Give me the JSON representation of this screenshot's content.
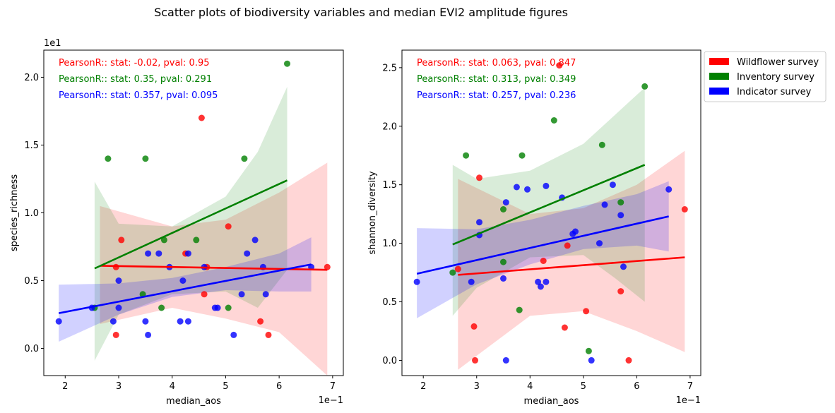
{
  "figure_title": "Scatter plots of biodiversity variables and median EVI2 amplitude figures",
  "legend": {
    "items": [
      {
        "label": "Wildflower survey",
        "color": "#ff0000"
      },
      {
        "label": "Inventory survey",
        "color": "#008000"
      },
      {
        "label": "Indicator survey",
        "color": "#0000ff"
      }
    ]
  },
  "chart_data": [
    {
      "type": "scatter",
      "xlabel": "median_aos",
      "ylabel": "species_richness",
      "x_offset_label": "1e−1",
      "y_offset_label": "1e1",
      "xlim": [
        1.6,
        7.2
      ],
      "ylim": [
        -0.2,
        2.2
      ],
      "xticks": [
        2,
        3,
        4,
        5,
        6,
        7
      ],
      "xtick_labels": [
        "2",
        "3",
        "4",
        "5",
        "6",
        "7"
      ],
      "yticks": [
        0.0,
        0.5,
        1.0,
        1.5,
        2.0
      ],
      "ytick_labels": [
        "0.0",
        "0.5",
        "1.0",
        "1.5",
        "2.0"
      ],
      "annotations": [
        {
          "text": "PearsonR:: stat: -0.02, pval: 0.95",
          "color": "#ff0000"
        },
        {
          "text": "PearsonR:: stat: 0.35, pval: 0.291",
          "color": "#008000"
        },
        {
          "text": "PearsonR:: stat: 0.357, pval: 0.095",
          "color": "#0000ff"
        }
      ],
      "series": [
        {
          "name": "Wildflower survey",
          "color": "#ff0000",
          "points": [
            [
              2.95,
              0.1
            ],
            [
              3.05,
              0.8
            ],
            [
              2.95,
              0.6
            ],
            [
              4.25,
              0.7
            ],
            [
              4.55,
              1.7
            ],
            [
              4.6,
              0.4
            ],
            [
              4.65,
              0.6
            ],
            [
              5.05,
              0.9
            ],
            [
              5.65,
              0.2
            ],
            [
              5.8,
              0.1
            ],
            [
              6.9,
              0.6
            ]
          ],
          "fit": [
            [
              2.65,
              0.61
            ],
            [
              6.9,
              0.58
            ]
          ],
          "ci_upper": [
            [
              2.65,
              1.05
            ],
            [
              4.0,
              0.9
            ],
            [
              5.0,
              0.95
            ],
            [
              6.0,
              1.15
            ],
            [
              6.9,
              1.37
            ]
          ],
          "ci_lower": [
            [
              2.65,
              0.18
            ],
            [
              4.0,
              0.3
            ],
            [
              5.0,
              0.22
            ],
            [
              6.0,
              0.12
            ],
            [
              6.9,
              -0.2
            ]
          ]
        },
        {
          "name": "Inventory survey",
          "color": "#008000",
          "points": [
            [
              2.55,
              0.3
            ],
            [
              2.8,
              1.4
            ],
            [
              3.45,
              0.4
            ],
            [
              3.5,
              1.4
            ],
            [
              3.8,
              0.3
            ],
            [
              3.85,
              0.8
            ],
            [
              4.45,
              0.8
            ],
            [
              5.05,
              0.3
            ],
            [
              5.35,
              1.4
            ],
            [
              6.15,
              2.1
            ]
          ],
          "fit": [
            [
              2.55,
              0.59
            ],
            [
              6.15,
              1.24
            ]
          ],
          "ci_upper": [
            [
              2.55,
              1.23
            ],
            [
              3.0,
              0.92
            ],
            [
              4.0,
              0.9
            ],
            [
              5.0,
              1.12
            ],
            [
              5.6,
              1.45
            ],
            [
              6.15,
              1.93
            ]
          ],
          "ci_lower": [
            [
              2.55,
              -0.09
            ],
            [
              3.0,
              0.25
            ],
            [
              4.0,
              0.4
            ],
            [
              5.0,
              0.42
            ],
            [
              5.6,
              0.3
            ],
            [
              6.15,
              0.58
            ]
          ]
        },
        {
          "name": "Indicator survey",
          "color": "#0000ff",
          "points": [
            [
              1.88,
              0.2
            ],
            [
              2.5,
              0.3
            ],
            [
              2.9,
              0.2
            ],
            [
              3.0,
              0.5
            ],
            [
              3.0,
              0.3
            ],
            [
              3.5,
              0.2
            ],
            [
              3.55,
              0.7
            ],
            [
              3.55,
              0.1
            ],
            [
              3.75,
              0.7
            ],
            [
              3.95,
              0.6
            ],
            [
              4.15,
              0.2
            ],
            [
              4.2,
              0.5
            ],
            [
              4.3,
              0.7
            ],
            [
              4.3,
              0.2
            ],
            [
              4.6,
              0.6
            ],
            [
              4.8,
              0.3
            ],
            [
              4.85,
              0.3
            ],
            [
              5.15,
              0.1
            ],
            [
              5.3,
              0.4
            ],
            [
              5.4,
              0.7
            ],
            [
              5.55,
              0.8
            ],
            [
              5.7,
              0.6
            ],
            [
              5.75,
              0.4
            ],
            [
              6.6,
              0.6
            ]
          ],
          "fit": [
            [
              1.88,
              0.26
            ],
            [
              6.6,
              0.62
            ]
          ],
          "ci_upper": [
            [
              1.88,
              0.47
            ],
            [
              3.0,
              0.48
            ],
            [
              4.0,
              0.52
            ],
            [
              5.0,
              0.6
            ],
            [
              6.0,
              0.7
            ],
            [
              6.6,
              0.82
            ]
          ],
          "ci_lower": [
            [
              1.88,
              0.05
            ],
            [
              3.0,
              0.25
            ],
            [
              4.0,
              0.38
            ],
            [
              5.0,
              0.43
            ],
            [
              6.0,
              0.42
            ],
            [
              6.6,
              0.42
            ]
          ]
        }
      ]
    },
    {
      "type": "scatter",
      "xlabel": "median_aos",
      "ylabel": "shannon_diversity",
      "x_offset_label": "1e−1",
      "y_offset_label": "",
      "xlim": [
        1.6,
        7.2
      ],
      "ylim": [
        -0.13,
        2.65
      ],
      "xticks": [
        2,
        3,
        4,
        5,
        6,
        7
      ],
      "xtick_labels": [
        "2",
        "3",
        "4",
        "5",
        "6",
        "7"
      ],
      "yticks": [
        0.0,
        0.5,
        1.0,
        1.5,
        2.0,
        2.5
      ],
      "ytick_labels": [
        "0.0",
        "0.5",
        "1.0",
        "1.5",
        "2.0",
        "2.5"
      ],
      "annotations": [
        {
          "text": "PearsonR:: stat: 0.063, pval: 0.847",
          "color": "#ff0000"
        },
        {
          "text": "PearsonR:: stat: 0.313, pval: 0.349",
          "color": "#008000"
        },
        {
          "text": "PearsonR:: stat: 0.257, pval: 0.236",
          "color": "#0000ff"
        }
      ],
      "series": [
        {
          "name": "Wildflower survey",
          "color": "#ff0000",
          "points": [
            [
              2.65,
              0.78
            ],
            [
              2.95,
              0.29
            ],
            [
              2.97,
              0.0
            ],
            [
              3.05,
              1.56
            ],
            [
              4.25,
              0.85
            ],
            [
              4.55,
              2.52
            ],
            [
              4.65,
              0.28
            ],
            [
              4.7,
              0.98
            ],
            [
              5.05,
              0.42
            ],
            [
              5.7,
              0.59
            ],
            [
              5.85,
              0.0
            ],
            [
              6.9,
              1.29
            ]
          ],
          "fit": [
            [
              2.65,
              0.73
            ],
            [
              6.9,
              0.88
            ]
          ],
          "ci_upper": [
            [
              2.65,
              1.55
            ],
            [
              4.0,
              1.25
            ],
            [
              5.0,
              1.3
            ],
            [
              6.0,
              1.5
            ],
            [
              6.9,
              1.79
            ]
          ],
          "ci_lower": [
            [
              2.65,
              -0.08
            ],
            [
              4.0,
              0.38
            ],
            [
              5.0,
              0.42
            ],
            [
              6.0,
              0.25
            ],
            [
              6.9,
              0.07
            ]
          ]
        },
        {
          "name": "Inventory survey",
          "color": "#008000",
          "points": [
            [
              2.55,
              0.75
            ],
            [
              2.8,
              1.75
            ],
            [
              3.5,
              0.84
            ],
            [
              3.5,
              1.29
            ],
            [
              3.8,
              0.43
            ],
            [
              3.85,
              1.75
            ],
            [
              4.45,
              2.05
            ],
            [
              5.1,
              0.08
            ],
            [
              5.35,
              1.84
            ],
            [
              5.7,
              1.35
            ],
            [
              6.15,
              2.34
            ]
          ],
          "fit": [
            [
              2.55,
              0.99
            ],
            [
              6.15,
              1.67
            ]
          ],
          "ci_upper": [
            [
              2.55,
              1.67
            ],
            [
              3.0,
              1.55
            ],
            [
              4.0,
              1.62
            ],
            [
              5.0,
              1.85
            ],
            [
              5.6,
              2.1
            ],
            [
              6.15,
              2.33
            ]
          ],
          "ci_lower": [
            [
              2.55,
              0.38
            ],
            [
              3.0,
              0.62
            ],
            [
              4.0,
              0.88
            ],
            [
              5.0,
              0.9
            ],
            [
              5.6,
              0.7
            ],
            [
              6.15,
              0.5
            ]
          ]
        },
        {
          "name": "Indicator survey",
          "color": "#0000ff",
          "points": [
            [
              1.88,
              0.67
            ],
            [
              2.9,
              0.67
            ],
            [
              3.05,
              1.18
            ],
            [
              3.05,
              1.07
            ],
            [
              3.5,
              0.7
            ],
            [
              3.55,
              1.35
            ],
            [
              3.55,
              0.0
            ],
            [
              3.75,
              1.48
            ],
            [
              3.95,
              1.46
            ],
            [
              4.15,
              0.67
            ],
            [
              4.2,
              0.63
            ],
            [
              4.3,
              1.49
            ],
            [
              4.3,
              0.67
            ],
            [
              4.6,
              1.39
            ],
            [
              4.8,
              1.08
            ],
            [
              4.85,
              1.1
            ],
            [
              5.15,
              0.0
            ],
            [
              5.3,
              1.0
            ],
            [
              5.4,
              1.33
            ],
            [
              5.55,
              1.5
            ],
            [
              5.7,
              1.24
            ],
            [
              5.75,
              0.8
            ],
            [
              6.6,
              1.46
            ]
          ],
          "fit": [
            [
              1.88,
              0.74
            ],
            [
              6.6,
              1.23
            ]
          ],
          "ci_upper": [
            [
              1.88,
              1.13
            ],
            [
              3.0,
              1.12
            ],
            [
              4.0,
              1.2
            ],
            [
              5.0,
              1.32
            ],
            [
              6.0,
              1.42
            ],
            [
              6.6,
              1.53
            ]
          ],
          "ci_lower": [
            [
              1.88,
              0.36
            ],
            [
              3.0,
              0.65
            ],
            [
              4.0,
              0.82
            ],
            [
              5.0,
              0.95
            ],
            [
              6.0,
              0.98
            ],
            [
              6.6,
              0.93
            ]
          ]
        }
      ]
    }
  ]
}
